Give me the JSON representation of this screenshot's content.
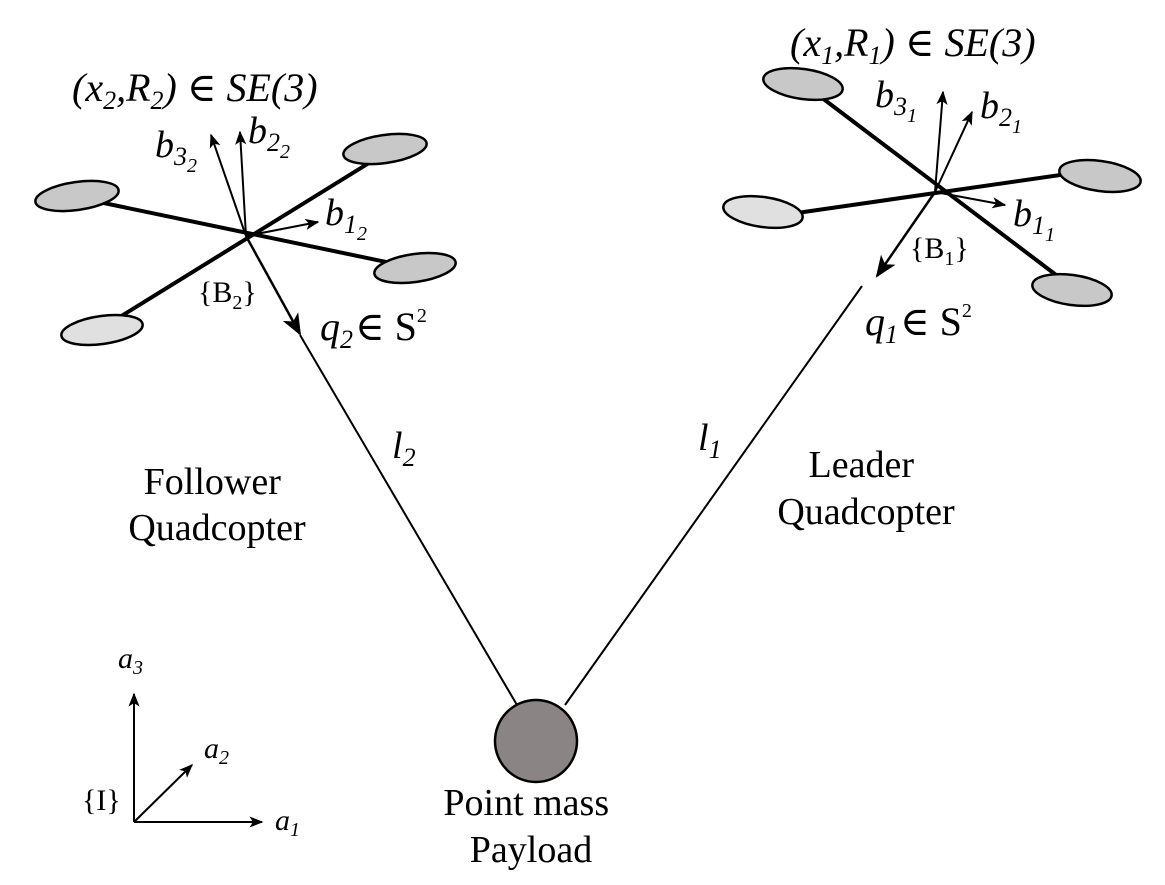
{
  "colors": {
    "line": "#000000",
    "rotor_dark": "#c8c8c8",
    "rotor_light": "#e0e0e0",
    "payload_fill": "#8b8484"
  },
  "follower": {
    "caption_line1": "Follower",
    "caption_line2": "Quadcopter",
    "config_label": "(x",
    "config_sub_x": "2",
    "config_mid": ",R",
    "config_sub_r": "2",
    "config_tail": ") ∈ SE(3)",
    "b1_main": "b",
    "b1_sub": "1",
    "b1_subsub": "2",
    "b2_main": "b",
    "b2_sub": "2",
    "b2_subsub": "2",
    "b3_main": "b",
    "b3_sub": "3",
    "b3_subsub": "2",
    "frame_label": "{B",
    "frame_sub": "2",
    "frame_tail": "}",
    "q_main": "q",
    "q_sub": "2",
    "q_tail": "∈ S",
    "q_sup": "2",
    "cable_main": "l",
    "cable_sub": "2"
  },
  "leader": {
    "caption_line1": "Leader",
    "caption_line2": "Quadcopter",
    "config_label": "(x",
    "config_sub_x": "1",
    "config_mid": ",R",
    "config_sub_r": "1",
    "config_tail": ") ∈ SE(3)",
    "b1_main": "b",
    "b1_sub": "1",
    "b1_subsub": "1",
    "b2_main": "b",
    "b2_sub": "2",
    "b2_subsub": "1",
    "b3_main": "b",
    "b3_sub": "3",
    "b3_subsub": "1",
    "frame_label": "{B",
    "frame_sub": "1",
    "frame_tail": "}",
    "q_main": "q",
    "q_sub": "1",
    "q_tail": "∈ S",
    "q_sup": "2",
    "cable_main": "l",
    "cable_sub": "1"
  },
  "payload": {
    "caption_line1": "Point mass",
    "caption_line2": "Payload"
  },
  "inertial": {
    "frame_label": "{I}",
    "a1_main": "a",
    "a1_sub": "1",
    "a2_main": "a",
    "a2_sub": "2",
    "a3_main": "a",
    "a3_sub": "3"
  }
}
